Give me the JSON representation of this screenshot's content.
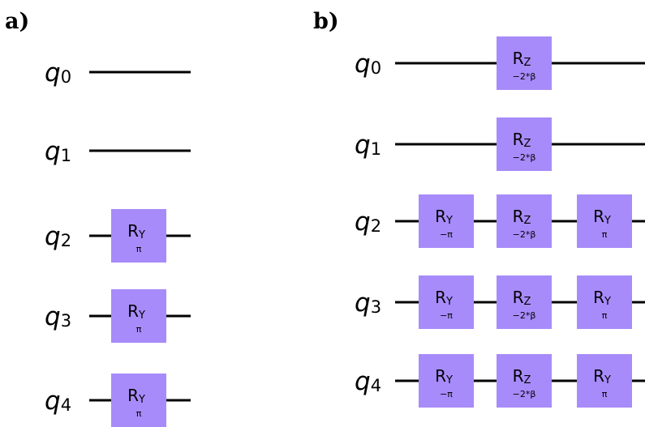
{
  "panels": [
    {
      "label": "a)",
      "qubits": [
        {
          "base": "q",
          "sub": "0",
          "gates": []
        },
        {
          "base": "q",
          "sub": "1",
          "gates": []
        },
        {
          "base": "q",
          "sub": "2",
          "gates": [
            {
              "base": "R",
              "sub": "Y",
              "param": "π"
            }
          ]
        },
        {
          "base": "q",
          "sub": "3",
          "gates": [
            {
              "base": "R",
              "sub": "Y",
              "param": "π"
            }
          ]
        },
        {
          "base": "q",
          "sub": "4",
          "gates": [
            {
              "base": "R",
              "sub": "Y",
              "param": "π"
            }
          ]
        }
      ]
    },
    {
      "label": "b)",
      "qubits": [
        {
          "base": "q",
          "sub": "0",
          "gates": [
            {
              "col": 1,
              "base": "R",
              "sub": "Z",
              "param": "−2*β"
            }
          ]
        },
        {
          "base": "q",
          "sub": "1",
          "gates": [
            {
              "col": 1,
              "base": "R",
              "sub": "Z",
              "param": "−2*β"
            }
          ]
        },
        {
          "base": "q",
          "sub": "2",
          "gates": [
            {
              "col": 0,
              "base": "R",
              "sub": "Y",
              "param": "−π"
            },
            {
              "col": 1,
              "base": "R",
              "sub": "Z",
              "param": "−2*β"
            },
            {
              "col": 2,
              "base": "R",
              "sub": "Y",
              "param": "π"
            }
          ]
        },
        {
          "base": "q",
          "sub": "3",
          "gates": [
            {
              "col": 0,
              "base": "R",
              "sub": "Y",
              "param": "−π"
            },
            {
              "col": 1,
              "base": "R",
              "sub": "Z",
              "param": "−2*β"
            },
            {
              "col": 2,
              "base": "R",
              "sub": "Y",
              "param": "π"
            }
          ]
        },
        {
          "base": "q",
          "sub": "4",
          "gates": [
            {
              "col": 0,
              "base": "R",
              "sub": "Y",
              "param": "−π"
            },
            {
              "col": 1,
              "base": "R",
              "sub": "Z",
              "param": "−2*β"
            },
            {
              "col": 2,
              "base": "R",
              "sub": "Y",
              "param": "π"
            }
          ]
        }
      ]
    }
  ],
  "colors": {
    "gate_fill": "#a78bfa",
    "wire": "#000000"
  }
}
